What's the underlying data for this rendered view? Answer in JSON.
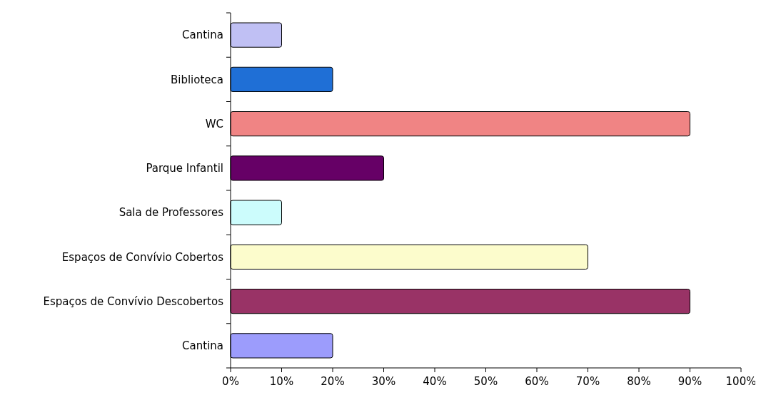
{
  "chart_data": {
    "type": "bar",
    "orientation": "horizontal",
    "categories": [
      "Cantina",
      "Biblioteca",
      "WC",
      "Parque Infantil",
      "Sala de Professores",
      "Espaços de Convívio Cobertos",
      "Espaços de Convívio Descobertos",
      "Cantina"
    ],
    "values": [
      10,
      20,
      90,
      30,
      10,
      70,
      90,
      20
    ],
    "colors": [
      "#c0c0f4",
      "#1f6fd6",
      "#f08484",
      "#660066",
      "#ccfcfc",
      "#fcfccc",
      "#993366",
      "#9c9cfc"
    ],
    "xlim": [
      0,
      100
    ],
    "xticks": [
      {
        "value": 0,
        "label": "0%"
      },
      {
        "value": 10,
        "label": "10%"
      },
      {
        "value": 20,
        "label": "20%"
      },
      {
        "value": 30,
        "label": "30%"
      },
      {
        "value": 40,
        "label": "40%"
      },
      {
        "value": 50,
        "label": "50%"
      },
      {
        "value": 60,
        "label": "60%"
      },
      {
        "value": 70,
        "label": "70%"
      },
      {
        "value": 80,
        "label": "80%"
      },
      {
        "value": 90,
        "label": "90%"
      },
      {
        "value": 100,
        "label": "100%"
      }
    ],
    "grid": false
  }
}
